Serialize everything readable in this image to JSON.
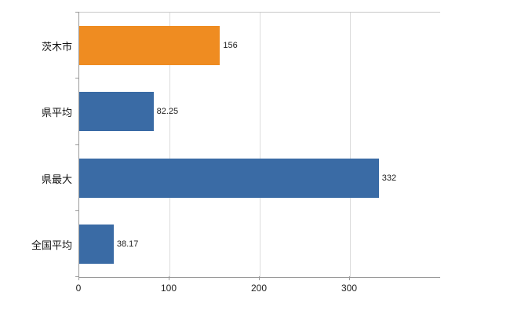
{
  "chart_data": {
    "type": "bar",
    "orientation": "horizontal",
    "title": "",
    "xlabel": "",
    "ylabel": "",
    "categories": [
      "茨木市",
      "県平均",
      "県最大",
      "全国平均"
    ],
    "values": [
      156,
      82.25,
      332,
      38.17
    ],
    "value_labels": [
      "156",
      "82.25",
      "332",
      "38.17"
    ],
    "bar_colors": [
      "#ef8c21",
      "#3a6ba5",
      "#3a6ba5",
      "#3a6ba5"
    ],
    "xlim": [
      0,
      400
    ],
    "x_ticks": [
      0,
      100,
      200,
      300
    ],
    "grid": true,
    "legend": "none",
    "colors": {
      "highlight_orange": "#ef8c21",
      "series_blue": "#3a6ba5",
      "gridline": "#dcdcdc",
      "axis": "#9a9a9a",
      "text": "#222222"
    }
  }
}
